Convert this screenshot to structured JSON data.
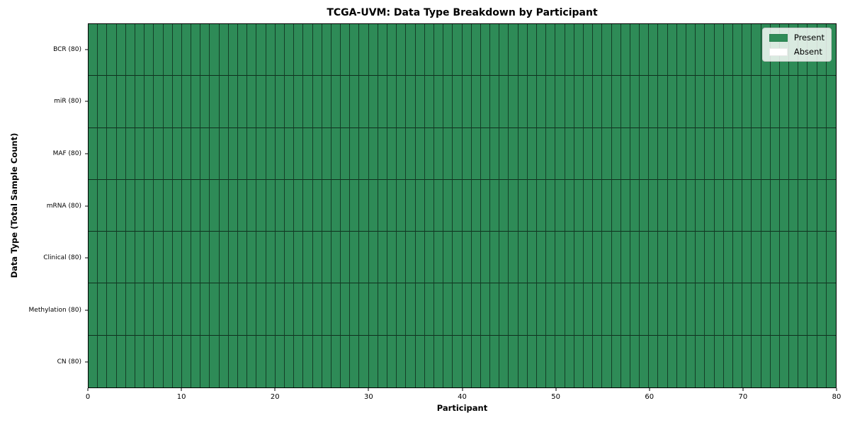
{
  "chart_data": {
    "type": "heatmap",
    "title": "TCGA-UVM: Data Type Breakdown by Participant",
    "xlabel": "Participant",
    "ylabel": "Data Type (Total Sample Count)",
    "x_range": [
      0,
      80
    ],
    "x_ticks": [
      0,
      10,
      20,
      30,
      40,
      50,
      60,
      70,
      80
    ],
    "n_participants": 80,
    "grid": true,
    "rows": [
      {
        "label": "BCR (80)",
        "data_type": "BCR",
        "total_samples": 80,
        "present_count": 80
      },
      {
        "label": "miR (80)",
        "data_type": "miR",
        "total_samples": 80,
        "present_count": 80
      },
      {
        "label": "MAF (80)",
        "data_type": "MAF",
        "total_samples": 80,
        "present_count": 80
      },
      {
        "label": "mRNA (80)",
        "data_type": "mRNA",
        "total_samples": 80,
        "present_count": 80
      },
      {
        "label": "Clinical (80)",
        "data_type": "Clinical",
        "total_samples": 80,
        "present_count": 80
      },
      {
        "label": "Methylation (80)",
        "data_type": "Methylation",
        "total_samples": 80,
        "present_count": 80
      },
      {
        "label": "CN (80)",
        "data_type": "CN",
        "total_samples": 80,
        "present_count": 80
      }
    ],
    "legend": {
      "position": "upper right",
      "items": [
        {
          "label": "Present",
          "color": "#2e8b57"
        },
        {
          "label": "Absent",
          "color": "#ffffff"
        }
      ]
    },
    "colors": {
      "present": "#2e8b57",
      "absent": "#ffffff",
      "cell_edge": "#1c3a29",
      "spine": "#000000"
    }
  }
}
